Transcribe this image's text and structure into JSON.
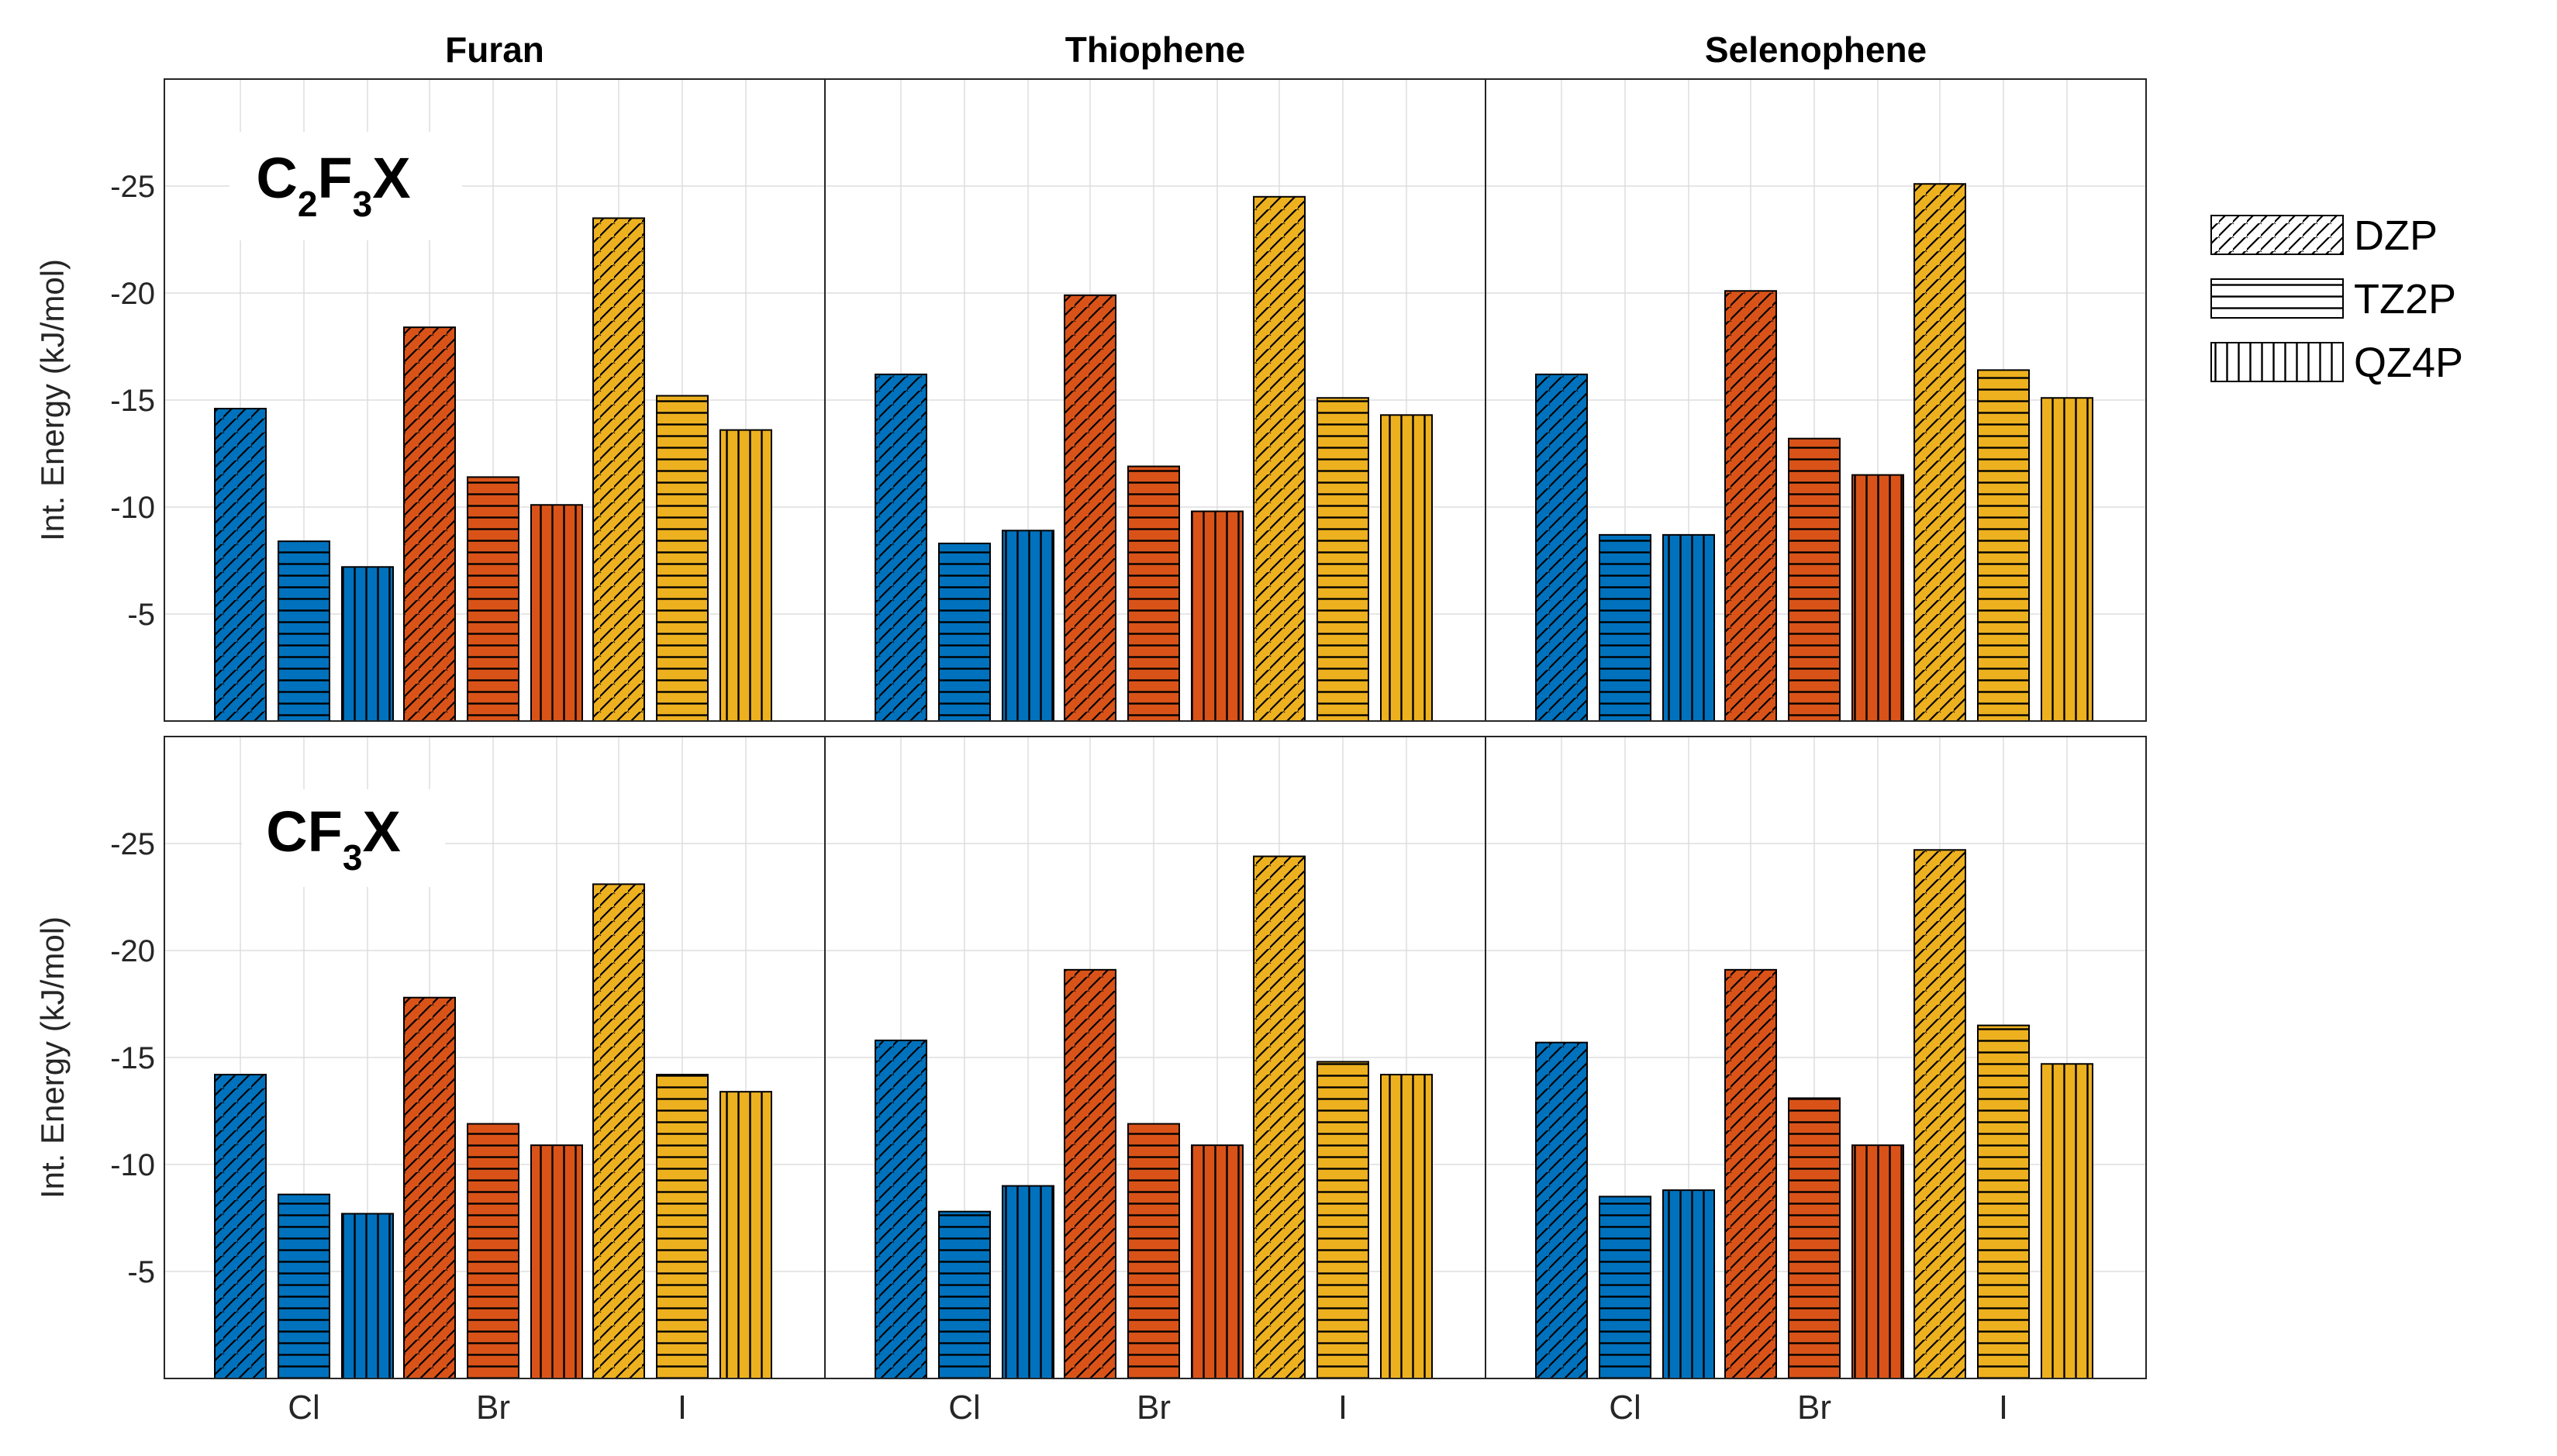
{
  "chart_data": {
    "type": "bar",
    "panel_titles": [
      "Furan",
      "Thiophene",
      "Selenophene"
    ],
    "row_labels": [
      {
        "base": "C",
        "sub1": "2",
        "mid": "F",
        "sub2": "3",
        "tail": "X"
      },
      {
        "base": "CF",
        "sub1": "3",
        "mid": "",
        "sub2": "",
        "tail": "X"
      }
    ],
    "ylabel": "Int. Energy (kJ/mol)",
    "ylim": [
      0,
      -30
    ],
    "yticks": [
      -5,
      -10,
      -15,
      -20,
      -25
    ],
    "ytick_labels": [
      "-5",
      "-10",
      "-15",
      "-20",
      "-25"
    ],
    "categories": [
      "Cl",
      "Br",
      "I"
    ],
    "basis_sets": [
      "DZP",
      "TZ2P",
      "QZ4P"
    ],
    "category_colors": {
      "Cl": "#0072BD",
      "Br": "#D95319",
      "I": "#EDB120"
    },
    "grid": true,
    "legend_position": "right",
    "legend": [
      {
        "label": "DZP",
        "pattern": "diagonal"
      },
      {
        "label": "TZ2P",
        "pattern": "horizontal"
      },
      {
        "label": "QZ4P",
        "pattern": "vertical"
      }
    ],
    "panels": [
      {
        "row": "C2F3X",
        "col": "Furan",
        "values": {
          "Cl": [
            -14.6,
            -8.4,
            -7.2
          ],
          "Br": [
            -18.4,
            -11.4,
            -10.1
          ],
          "I": [
            -23.5,
            -15.2,
            -13.6
          ]
        }
      },
      {
        "row": "C2F3X",
        "col": "Thiophene",
        "values": {
          "Cl": [
            -16.2,
            -8.3,
            -8.9
          ],
          "Br": [
            -19.9,
            -11.9,
            -9.8
          ],
          "I": [
            -24.5,
            -15.1,
            -14.3
          ]
        }
      },
      {
        "row": "C2F3X",
        "col": "Selenophene",
        "values": {
          "Cl": [
            -16.2,
            -8.7,
            -8.7
          ],
          "Br": [
            -20.1,
            -13.2,
            -11.5
          ],
          "I": [
            -25.1,
            -16.4,
            -15.1
          ]
        }
      },
      {
        "row": "CF3X",
        "col": "Furan",
        "values": {
          "Cl": [
            -14.2,
            -8.6,
            -7.7
          ],
          "Br": [
            -17.8,
            -11.9,
            -10.9
          ],
          "I": [
            -23.1,
            -14.2,
            -13.4
          ]
        }
      },
      {
        "row": "CF3X",
        "col": "Thiophene",
        "values": {
          "Cl": [
            -15.8,
            -7.8,
            -9.0
          ],
          "Br": [
            -19.1,
            -11.9,
            -10.9
          ],
          "I": [
            -24.4,
            -14.8,
            -14.2
          ]
        }
      },
      {
        "row": "CF3X",
        "col": "Selenophene",
        "values": {
          "Cl": [
            -15.7,
            -8.5,
            -8.8
          ],
          "Br": [
            -19.1,
            -13.1,
            -10.9
          ],
          "I": [
            -24.7,
            -16.5,
            -14.7
          ]
        }
      }
    ]
  }
}
